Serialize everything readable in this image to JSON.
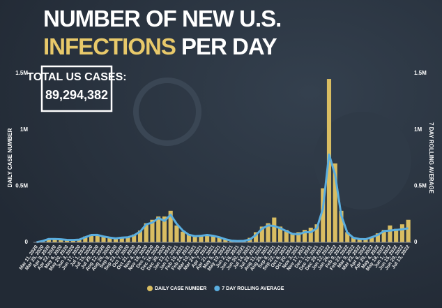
{
  "chart_data": {
    "type": "bar-line",
    "title_line1": "NUMBER OF NEW U.S.",
    "title_highlight": "INFECTIONS",
    "title_rest": "PER DAY",
    "total_label": "TOTAL US CASES:",
    "total_value": "89,294,382",
    "y_label": "DAILY CASE NUMBER",
    "y2_label": "7 DAY ROLLING AVERAGE",
    "legend": "bottom",
    "categories": [
      "Mar 11, 2020",
      "Mar 25, 2020",
      "Apr 8, 2020",
      "Apr 22, 2020",
      "May 6, 2020",
      "May 20, 2020",
      "Jun 3, 2020",
      "Jun 17, 2020",
      "Jul 1, 2020",
      "Jul 15, 2020",
      "Jul 29, 2020",
      "Aug 12, 2020",
      "Aug 26, 2020",
      "Sep 9, 2020",
      "Sep 23, 2020",
      "Oct 7, 2020",
      "Oct 21, 2020",
      "Nov 4, 2020",
      "Nov 18, 2020",
      "Dec 2, 2020",
      "Dec 16, 2020",
      "Dec 30, 2020",
      "Jan 13, 2021",
      "Jan 27, 2021",
      "Feb 10, 2021",
      "Feb 24, 2021",
      "Mar 10, 2021",
      "Mar 24, 2021",
      "Apr 7, 2021",
      "Apr 21, 2021",
      "May 5, 2021",
      "May 19, 2021",
      "Jun 2, 2021",
      "Jun 16, 2021",
      "Jun 30, 2021",
      "Jul 14, 2021",
      "Jul 28, 2021",
      "Aug 11, 2021",
      "Aug 25, 2021",
      "Sep 8, 2021",
      "Sep 22, 2021",
      "Oct 6, 2021",
      "Oct 20, 2021",
      "Nov 3, 2021",
      "Nov 17, 2021",
      "Dec 1, 2021",
      "Dec 15, 2021",
      "Dec 29, 2021",
      "Jan 12, 2022",
      "Jan 26, 2022",
      "Feb 9, 2022",
      "Feb 23, 2022",
      "Mar 9, 2022",
      "Mar 23, 2022",
      "Apr 6, 2022",
      "Apr 20, 2022",
      "May 4, 2022",
      "May 18, 2022",
      "Jun 1, 2022",
      "Jun 15, 2022",
      "Jun 29, 2022",
      "Jul 13, 2022"
    ],
    "series": [
      {
        "name": "DAILY CASE NUMBER",
        "color": "#d9bd62",
        "values": [
          1000,
          14000,
          31000,
          28000,
          25000,
          20000,
          20000,
          27000,
          52000,
          70000,
          62000,
          48000,
          40000,
          30000,
          45000,
          48000,
          70000,
          105000,
          170000,
          200000,
          230000,
          230000,
          280000,
          150000,
          95000,
          70000,
          55000,
          60000,
          70000,
          55000,
          45000,
          30000,
          12000,
          14000,
          18000,
          40000,
          90000,
          140000,
          170000,
          220000,
          140000,
          110000,
          80000,
          90000,
          110000,
          130000,
          160000,
          480000,
          1450000,
          700000,
          280000,
          90000,
          45000,
          30000,
          25000,
          50000,
          80000,
          110000,
          150000,
          120000,
          160000,
          200000
        ]
      },
      {
        "name": "7 DAY ROLLING AVERAGE",
        "color": "#5aaee0",
        "axis": "y2",
        "values": [
          1000,
          12000,
          30000,
          30000,
          27000,
          22000,
          21000,
          24000,
          45000,
          65000,
          66000,
          52000,
          42000,
          35000,
          42000,
          45000,
          62000,
          95000,
          160000,
          175000,
          215000,
          190000,
          245000,
          165000,
          105000,
          67000,
          55000,
          58000,
          65000,
          58000,
          45000,
          27000,
          15000,
          12000,
          13000,
          25000,
          65000,
          120000,
          150000,
          145000,
          125000,
          100000,
          75000,
          72000,
          90000,
          90000,
          125000,
          300000,
          780000,
          600000,
          240000,
          85000,
          40000,
          30000,
          28000,
          45000,
          65000,
          100000,
          105000,
          110000,
          115000,
          125000
        ]
      }
    ],
    "ylim": [
      0,
      1500000
    ],
    "yticks": [
      0,
      {
        "value": 500000,
        "label": "0.5M"
      },
      {
        "value": 1000000,
        "label": "1M"
      },
      {
        "value": 1500000,
        "label": "1.5M"
      }
    ],
    "y2lim": [
      0,
      1500000
    ],
    "y2ticks": [
      0,
      {
        "value": 500000,
        "label": "0.5M"
      },
      {
        "value": 1000000,
        "label": "1M"
      },
      {
        "value": 1500000,
        "label": "1.5M"
      }
    ]
  }
}
